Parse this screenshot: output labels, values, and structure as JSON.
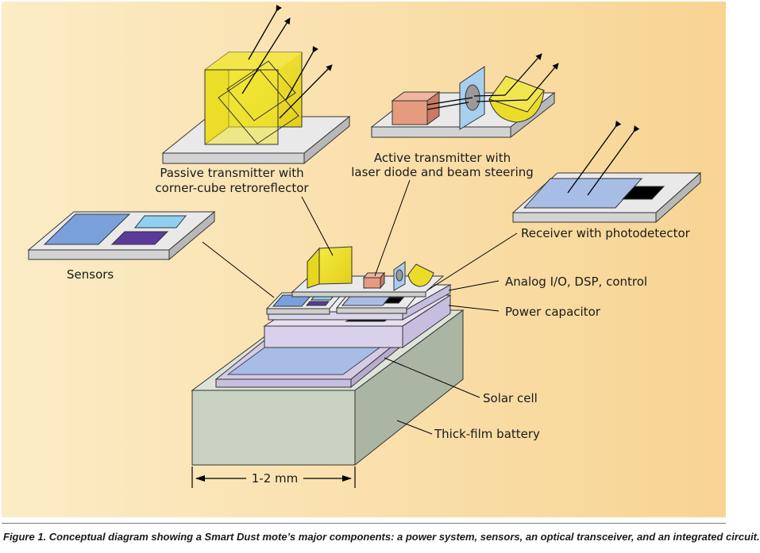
{
  "labels": {
    "passive_line1": "Passive transmitter with",
    "passive_line2": "corner-cube retroreflector",
    "active_line1": "Active transmitter with",
    "active_line2": "laser diode and beam steering",
    "receiver": "Receiver with photodetector",
    "sensors": "Sensors",
    "analog": "Analog I/O, DSP, control",
    "power_capacitor": "Power capacitor",
    "solar_cell": "Solar cell",
    "battery": "Thick-film battery",
    "scale": "1-2 mm"
  },
  "caption": "Figure 1. Conceptual diagram showing a Smart Dust mote’s major components: a power system, sensors, an optical transceiver, and an integrated circuit.",
  "colors": {
    "background_left": "#fbe9bd",
    "background_right": "#f8d48f",
    "battery": "#c9d2c2",
    "solar_frame": "#d4cbe5",
    "solar_cell": "#a8bde6",
    "plate": "#e6e6e6",
    "cube": "#ecdc2a",
    "laser": "#e59b80",
    "sensor_blue": "#7aa0dc",
    "sensor_cyan": "#8ed0f2",
    "sensor_purple": "#5b3a9c",
    "detector": "#a8bde6",
    "dark_chip": "#000000"
  }
}
